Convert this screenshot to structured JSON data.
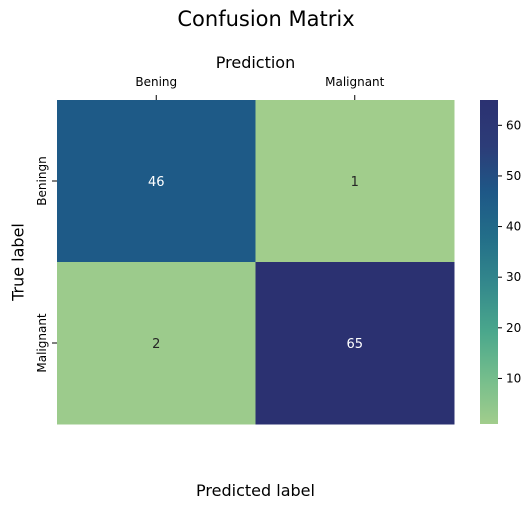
{
  "chart_data": {
    "type": "heatmap",
    "title": "Confusion Matrix",
    "top_label": "Prediction",
    "xlabel": "Predicted label",
    "ylabel": "True label",
    "x_categories": [
      "Bening",
      "Malignant"
    ],
    "y_categories": [
      "Beningn",
      "Malignant"
    ],
    "values": [
      [
        46,
        1
      ],
      [
        2,
        65
      ]
    ],
    "colorbar": {
      "min": 1,
      "max": 65,
      "ticks": [
        10,
        20,
        30,
        40,
        50,
        60
      ]
    },
    "colormap": [
      "#a1cd8c",
      "#74bd8c",
      "#4aa78c",
      "#34898c",
      "#236f89",
      "#1e5887",
      "#2c3c78",
      "#2b3171"
    ]
  }
}
